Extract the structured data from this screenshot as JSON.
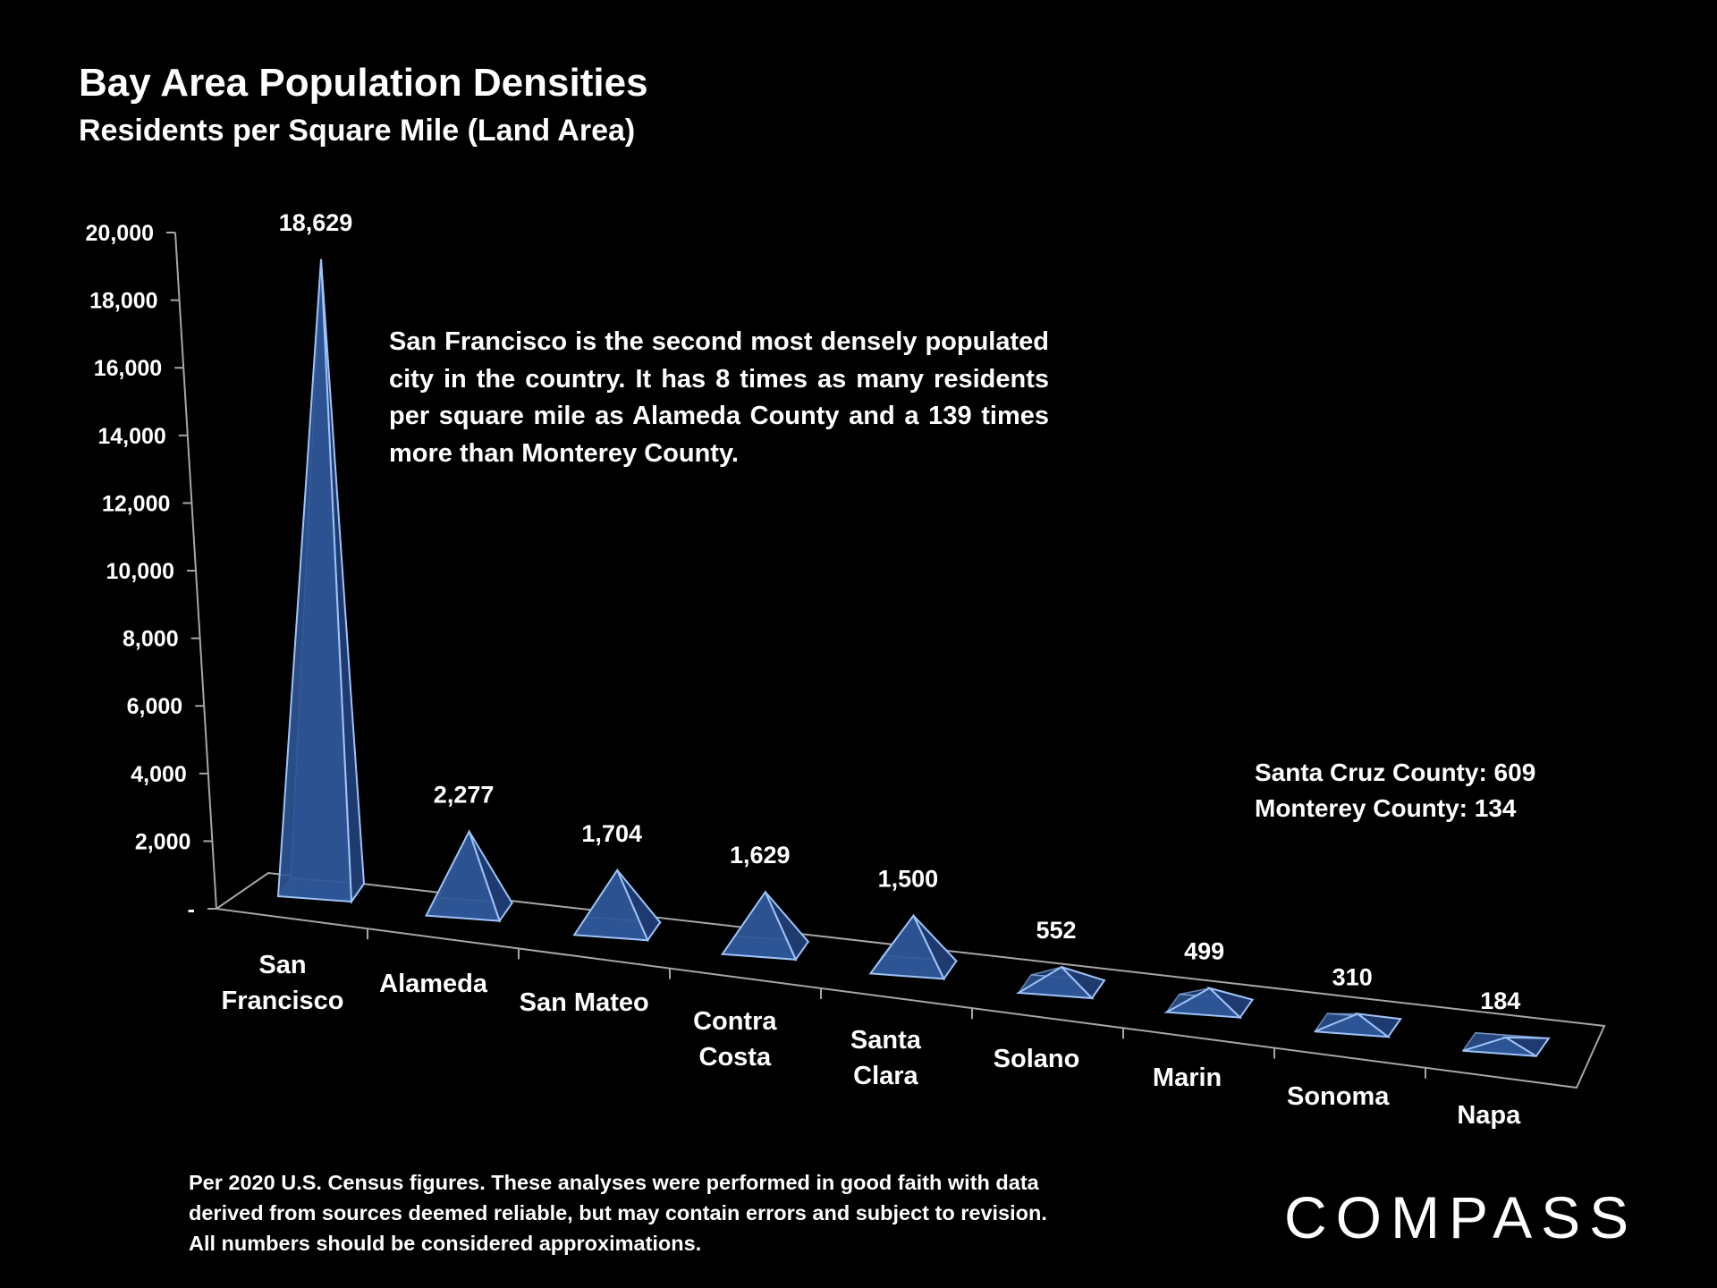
{
  "header": {
    "title": "Bay Area Population Densities",
    "subtitle": "Residents per Square Mile (Land Area)"
  },
  "annotation": "San Francisco is the second most densely populated city in the country. It has 8 times as many residents per square mile as Alameda County and a 139 times more than Monterey County.",
  "side_notes": [
    "Santa Cruz County:  609",
    "Monterey County:  134"
  ],
  "footnote": "Per 2020 U.S. Census figures. These analyses were performed in good faith with data derived from sources deemed reliable, but may contain errors and subject to revision. All numbers should be considered approximations.",
  "brand": "COMPASS",
  "colors": {
    "pyramid_fill": "#2f5597",
    "pyramid_edge": "#9dc3f7",
    "axis": "#a6a6a6"
  },
  "chart_data": {
    "type": "bar",
    "style": "3d-pyramid",
    "title": "Bay Area Population Densities",
    "subtitle": "Residents per Square Mile (Land Area)",
    "categories": [
      [
        "San",
        "Francisco"
      ],
      [
        "Alameda"
      ],
      [
        "San Mateo"
      ],
      [
        "Contra",
        "Costa"
      ],
      [
        "Santa",
        "Clara"
      ],
      [
        "Solano"
      ],
      [
        "Marin"
      ],
      [
        "Sonoma"
      ],
      [
        "Napa"
      ]
    ],
    "values": [
      18629,
      2277,
      1704,
      1629,
      1500,
      552,
      499,
      310,
      184
    ],
    "value_labels": [
      "18,629",
      "2,277",
      "1,704",
      "1,629",
      "1,500",
      "552",
      "499",
      "310",
      "184"
    ],
    "ylim": [
      0,
      20000
    ],
    "yticks": [
      0,
      2000,
      4000,
      6000,
      8000,
      10000,
      12000,
      14000,
      16000,
      18000,
      20000
    ],
    "ytick_labels": [
      "-",
      "2,000",
      "4,000",
      "6,000",
      "8,000",
      "10,000",
      "12,000",
      "14,000",
      "16,000",
      "18,000",
      "20,000"
    ],
    "xlabel": "",
    "ylabel": "",
    "grid": false,
    "legend": "none"
  }
}
